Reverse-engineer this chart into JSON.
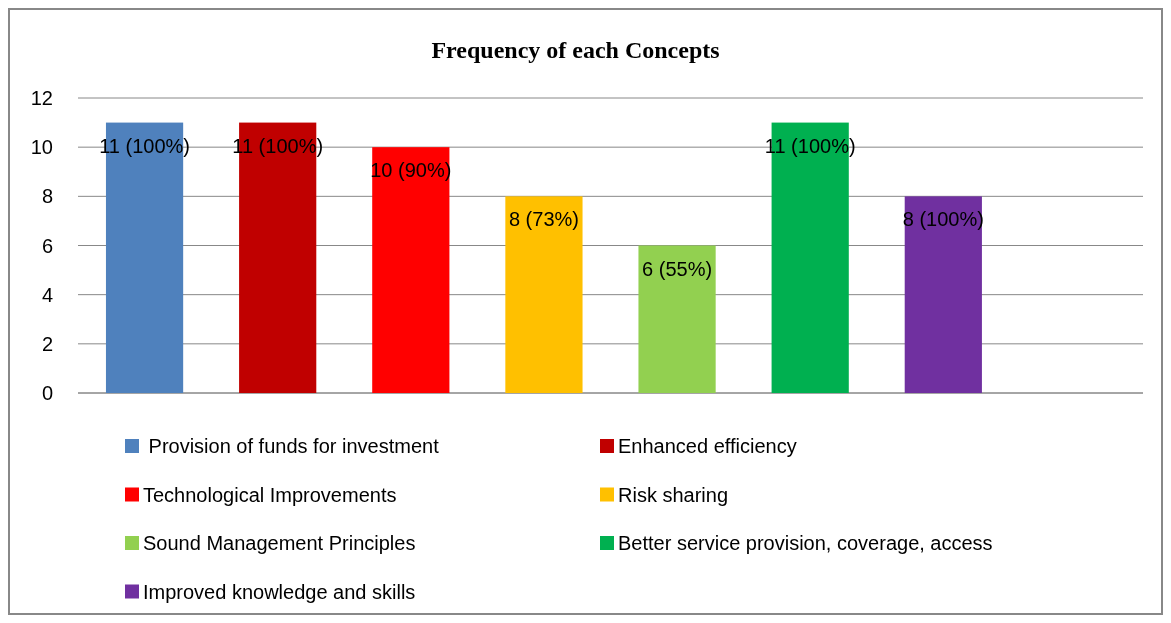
{
  "chart_data": {
    "type": "bar",
    "title": "Frequency of each Concepts",
    "categories": [
      null,
      null,
      null,
      null,
      null,
      null,
      null,
      null
    ],
    "series": [
      {
        "name": " Provision of funds for investment",
        "color": "#4f81bd",
        "values": [
          11,
          null,
          null,
          null,
          null,
          null,
          null,
          null
        ],
        "value_labels": [
          "11 (100%)",
          null,
          null,
          null,
          null,
          null,
          null,
          null
        ]
      },
      {
        "name": "Enhanced efficiency",
        "color": "#c00000",
        "values": [
          null,
          11,
          null,
          null,
          null,
          null,
          null,
          null
        ],
        "value_labels": [
          null,
          "11 (100%)",
          null,
          null,
          null,
          null,
          null,
          null
        ]
      },
      {
        "name": "Technological Improvements",
        "color": "#ff0000",
        "values": [
          null,
          null,
          10,
          null,
          null,
          null,
          null,
          null
        ],
        "value_labels": [
          null,
          null,
          "10 (90%)",
          null,
          null,
          null,
          null,
          null
        ]
      },
      {
        "name": "Risk sharing",
        "color": "#ffc000",
        "values": [
          null,
          null,
          null,
          8,
          null,
          null,
          null,
          null
        ],
        "value_labels": [
          null,
          null,
          null,
          "8 (73%)",
          null,
          null,
          null,
          null
        ]
      },
      {
        "name": "Sound Management Principles",
        "color": "#92d050",
        "values": [
          null,
          null,
          null,
          null,
          6,
          null,
          null,
          null
        ],
        "value_labels": [
          null,
          null,
          null,
          null,
          "6 (55%)",
          null,
          null,
          null
        ]
      },
      {
        "name": "Better service provision, coverage, access",
        "color": "#00b050",
        "values": [
          null,
          null,
          null,
          null,
          null,
          11,
          null,
          null
        ],
        "value_labels": [
          null,
          null,
          null,
          null,
          null,
          "11 (100%)",
          null,
          null
        ]
      },
      {
        "name": "Improved knowledge and skills",
        "color": "#7030a0",
        "values": [
          null,
          null,
          null,
          null,
          null,
          null,
          8,
          null
        ],
        "value_labels": [
          null,
          null,
          null,
          null,
          null,
          null,
          "8 (100%)",
          null
        ]
      }
    ],
    "ylim": [
      0,
      12
    ],
    "yticks": [
      0,
      2,
      4,
      6,
      8,
      10,
      12
    ],
    "grid": "y",
    "legend": "bottom"
  }
}
